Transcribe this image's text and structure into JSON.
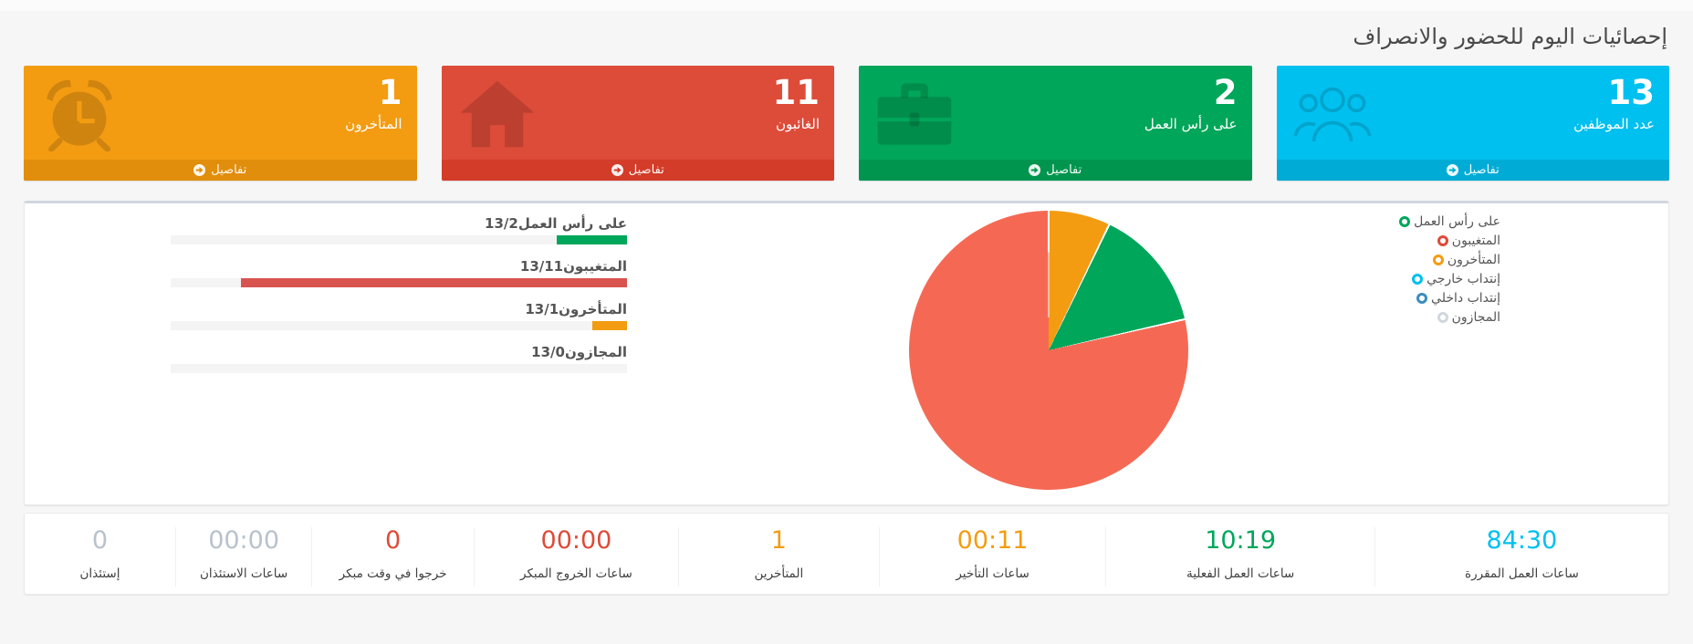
{
  "page": {
    "title": "إحصائيات اليوم للحضور والانصراف"
  },
  "cards": [
    {
      "value": "13",
      "label": "عدد الموظفين",
      "details_label": "تفاصيل",
      "color": "#00c0ef",
      "footer_color": "#00acd6",
      "icon": "users-icon"
    },
    {
      "value": "2",
      "label": "على رأس العمل",
      "details_label": "تفاصيل",
      "color": "#00a65a",
      "footer_color": "#00954f",
      "icon": "briefcase-icon"
    },
    {
      "value": "11",
      "label": "الغائبون",
      "details_label": "تفاصيل",
      "color": "#dd4b39",
      "footer_color": "#d33c28",
      "icon": "home-icon"
    },
    {
      "value": "1",
      "label": "المتأخرون",
      "details_label": "تفاصيل",
      "color": "#f39c12",
      "footer_color": "#e08e0b",
      "icon": "alarm-clock-icon"
    }
  ],
  "chart_data": [
    {
      "type": "bar",
      "orientation": "horizontal",
      "direction": "rtl",
      "categories": [
        "على رأس العمل",
        "المتغيبون",
        "المتأخرون",
        "المجازون"
      ],
      "values": [
        2,
        11,
        1,
        0
      ],
      "total": 13,
      "value_labels": [
        "13/2",
        "13/11",
        "13/1",
        "13/0"
      ],
      "colors": [
        "#00a65a",
        "#d9534f",
        "#f39c12",
        "#d2d6de"
      ],
      "track_color": "#f4f4f4"
    },
    {
      "type": "pie",
      "labels": [
        "المتأخرون",
        "على رأس العمل",
        "المتغيبون"
      ],
      "values": [
        1,
        2,
        11
      ],
      "colors": [
        "#f39c12",
        "#00a65a",
        "#f56954"
      ],
      "start_angle_deg": 0,
      "clockwise": true,
      "legend": {
        "position": "top-right",
        "items": [
          {
            "label": "على رأس العمل",
            "color": "#00a65a"
          },
          {
            "label": "المتغيبون",
            "color": "#dd4b39"
          },
          {
            "label": "المتأخرون",
            "color": "#f39c12"
          },
          {
            "label": "إنتداب خارجي",
            "color": "#00c0ef"
          },
          {
            "label": "إنتداب داخلي",
            "color": "#3c8dbc"
          },
          {
            "label": "المجازون",
            "color": "#d2d6de"
          }
        ]
      }
    }
  ],
  "stats": [
    {
      "value": "84:30",
      "label": "ساعات العمل المقررة",
      "color": "#00c0ef"
    },
    {
      "value": "10:19",
      "label": "ساعات العمل الفعلية",
      "color": "#00a65a"
    },
    {
      "value": "00:11",
      "label": "ساعات التأخير",
      "color": "#f39c12"
    },
    {
      "value": "1",
      "label": "المتأخرين",
      "color": "#f39c12"
    },
    {
      "value": "00:00",
      "label": "ساعات الخروج المبكر",
      "color": "#dd4b39"
    },
    {
      "value": "0",
      "label": "خرجوا في وقت مبكر",
      "color": "#dd4b39"
    },
    {
      "value": "00:00",
      "label": "ساعات الاستئذان",
      "color": "#b8c2cc"
    },
    {
      "value": "0",
      "label": "إستئذان",
      "color": "#b8c2cc"
    }
  ]
}
